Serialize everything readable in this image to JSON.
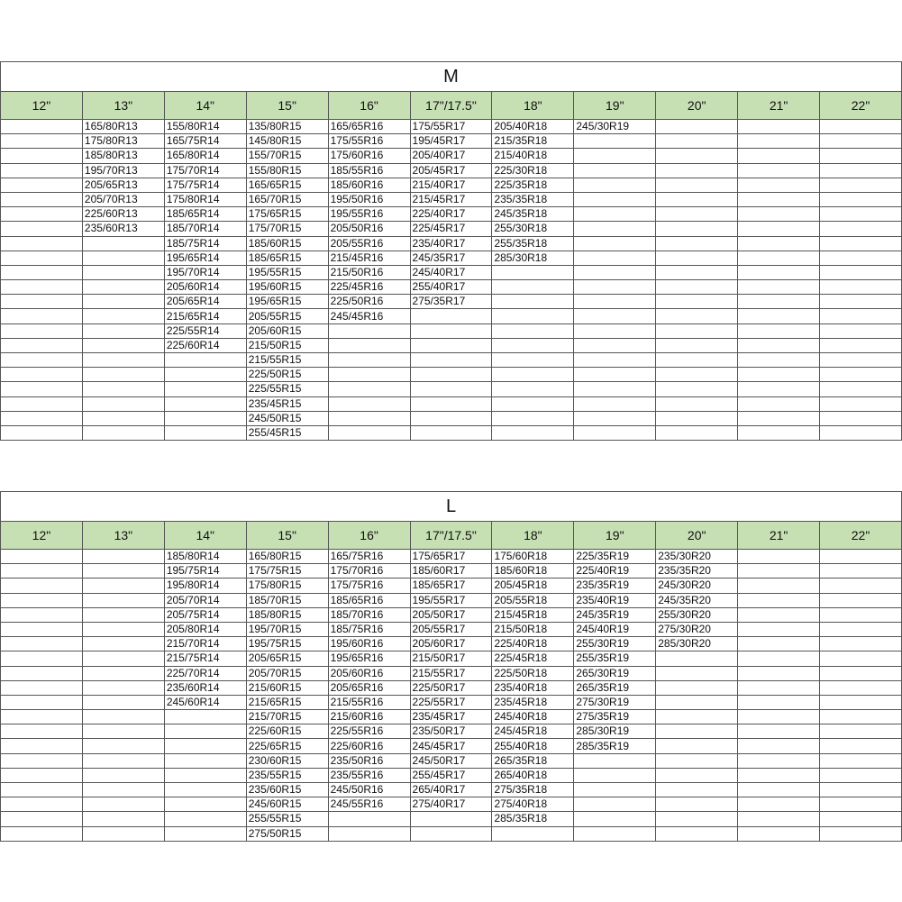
{
  "colors": {
    "header_bg": "#c6e0b4",
    "border": "#555555"
  },
  "tables": [
    {
      "title": "M",
      "headers": [
        "12\"",
        "13\"",
        "14\"",
        "15\"",
        "16\"",
        "17\"/17.5\"",
        "18\"",
        "19\"",
        "20\"",
        "21\"",
        "22\""
      ],
      "columns": [
        [],
        [
          "165/80R13",
          "175/80R13",
          "185/80R13",
          "195/70R13",
          "205/65R13",
          "205/70R13",
          "225/60R13",
          "235/60R13"
        ],
        [
          "155/80R14",
          "165/75R14",
          "165/80R14",
          "175/70R14",
          "175/75R14",
          "175/80R14",
          "185/65R14",
          "185/70R14",
          "185/75R14",
          "195/65R14",
          "195/70R14",
          "205/60R14",
          "205/65R14",
          "215/65R14",
          "225/55R14",
          "225/60R14"
        ],
        [
          "135/80R15",
          "145/80R15",
          "155/70R15",
          "155/80R15",
          "165/65R15",
          "165/70R15",
          "175/65R15",
          "175/70R15",
          "185/60R15",
          "185/65R15",
          "195/55R15",
          "195/60R15",
          "195/65R15",
          "205/55R15",
          "205/60R15",
          "215/50R15",
          "215/55R15",
          "225/50R15",
          "225/55R15",
          "235/45R15",
          "245/50R15",
          "255/45R15"
        ],
        [
          "165/65R16",
          "175/55R16",
          "175/60R16",
          "185/55R16",
          "185/60R16",
          "195/50R16",
          "195/55R16",
          "205/50R16",
          "205/55R16",
          "215/45R16",
          "215/50R16",
          "225/45R16",
          "225/50R16",
          "245/45R16"
        ],
        [
          "175/55R17",
          "195/45R17",
          "205/40R17",
          "205/45R17",
          "215/40R17",
          "215/45R17",
          "225/40R17",
          "225/45R17",
          "235/40R17",
          "245/35R17",
          "245/40R17",
          "255/40R17",
          "275/35R17"
        ],
        [
          "205/40R18",
          "215/35R18",
          "215/40R18",
          "225/30R18",
          "225/35R18",
          "235/35R18",
          "245/35R18",
          "255/30R18",
          "255/35R18",
          "285/30R18"
        ],
        [
          "245/30R19"
        ],
        [],
        [],
        []
      ]
    },
    {
      "title": "L",
      "headers": [
        "12\"",
        "13\"",
        "14\"",
        "15\"",
        "16\"",
        "17\"/17.5\"",
        "18\"",
        "19\"",
        "20\"",
        "21\"",
        "22\""
      ],
      "columns": [
        [],
        [],
        [
          "185/80R14",
          "195/75R14",
          "195/80R14",
          "205/70R14",
          "205/75R14",
          "205/80R14",
          "215/70R14",
          "215/75R14",
          "225/70R14",
          "235/60R14",
          "245/60R14"
        ],
        [
          "165/80R15",
          "175/75R15",
          "175/80R15",
          "185/70R15",
          "185/80R15",
          "195/70R15",
          "195/75R15",
          "205/65R15",
          "205/70R15",
          "215/60R15",
          "215/65R15",
          "215/70R15",
          "225/60R15",
          "225/65R15",
          "230/60R15",
          "235/55R15",
          "235/60R15",
          "245/60R15",
          "255/55R15",
          "275/50R15"
        ],
        [
          "165/75R16",
          "175/70R16",
          "175/75R16",
          "185/65R16",
          "185/70R16",
          "185/75R16",
          "195/60R16",
          "195/65R16",
          "205/60R16",
          "205/65R16",
          "215/55R16",
          "215/60R16",
          "225/55R16",
          "225/60R16",
          "235/50R16",
          "235/55R16",
          "245/50R16",
          "245/55R16"
        ],
        [
          "175/65R17",
          "185/60R17",
          "185/65R17",
          "195/55R17",
          "205/50R17",
          "205/55R17",
          "205/60R17",
          "215/50R17",
          "215/55R17",
          "225/50R17",
          "225/55R17",
          "235/45R17",
          "235/50R17",
          "245/45R17",
          "245/50R17",
          "255/45R17",
          "265/40R17",
          "275/40R17"
        ],
        [
          "175/60R18",
          "185/60R18",
          "205/45R18",
          "205/55R18",
          "215/45R18",
          "215/50R18",
          "225/40R18",
          "225/45R18",
          "225/50R18",
          "235/40R18",
          "235/45R18",
          "245/40R18",
          "245/45R18",
          "255/40R18",
          "265/35R18",
          "265/40R18",
          "275/35R18",
          "275/40R18",
          "285/35R18"
        ],
        [
          "225/35R19",
          "225/40R19",
          "235/35R19",
          "235/40R19",
          "245/35R19",
          "245/40R19",
          "255/30R19",
          "255/35R19",
          "265/30R19",
          "265/35R19",
          "275/30R19",
          "275/35R19",
          "285/30R19",
          "285/35R19"
        ],
        [
          "235/30R20",
          "235/35R20",
          "245/30R20",
          "245/35R20",
          "255/30R20",
          "275/30R20",
          "285/30R20"
        ],
        [],
        []
      ]
    }
  ]
}
